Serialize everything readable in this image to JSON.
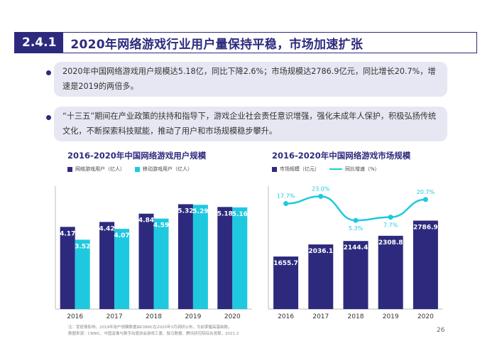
{
  "header": {
    "number": "2.4.1",
    "title": "2020年网络游戏行业用户量保持平稳，市场加速扩张"
  },
  "bullets": [
    "2020年中国网络游戏用户规模达5.18亿，同比下降2.6%；市场规模达2786.9亿元，同比增长20.7%，增速是2019的两倍多。",
    "“十三五”期间在产业政策的扶持和指导下，游戏企业社会责任意识增强，强化未成年人保护，积极弘扬传统文化，不断探索科技赋能，推动了用户和市场规模稳步攀升。"
  ],
  "colors": {
    "navy": "#2d2a7e",
    "cyan": "#1ec9e0",
    "bg": "#e6e7f2"
  },
  "chart_data": [
    {
      "type": "bar",
      "title": "2016-2020年中国网络游戏用户规模",
      "categories": [
        "2016",
        "2017",
        "2018",
        "2019",
        "2020"
      ],
      "series": [
        {
          "name": "网络游戏用户（亿人）",
          "values": [
            4.17,
            4.42,
            4.84,
            5.32,
            5.18
          ],
          "labels": [
            "4.17",
            "4.42",
            "4.84",
            "5.32",
            "5.18"
          ]
        },
        {
          "name": "移动游戏用户（亿人）",
          "values": [
            3.52,
            4.07,
            4.59,
            5.29,
            5.16
          ],
          "labels": [
            "3.52",
            "4.07",
            "4.59",
            "5.29",
            "5.16"
          ]
        }
      ],
      "ylim": [
        0,
        6.2
      ],
      "grid": false,
      "legend": "top-left"
    },
    {
      "type": "bar",
      "title": "2016-2020年中国网络游戏市场规模",
      "categories": [
        "2016",
        "2017",
        "2018",
        "2019",
        "2020"
      ],
      "series": [
        {
          "name": "市场规模（亿元）",
          "values": [
            1655.7,
            2036.1,
            2144.4,
            2308.8,
            2786.9
          ],
          "labels": [
            "1655.7",
            "2036.1",
            "2144.4",
            "2308.8",
            "2786.9"
          ]
        },
        {
          "name": "同比增速（%）",
          "values": [
            17.7,
            23.0,
            5.3,
            7.7,
            20.7
          ],
          "labels": [
            "17.7%",
            "23.0%",
            "5.3%",
            "7.7%",
            "20.7%"
          ]
        }
      ],
      "ylim": [
        0,
        3850
      ],
      "y2lim": [
        -60,
        30
      ],
      "grid": false,
      "legend": "top-left"
    }
  ],
  "footnote": [
    "注：受疫情影响，2019年用户规模数据由CNNIC在2020年3月调研公布，为前掌握高基础数。",
    "数据来源：CNNIC、中国音像与数字出版协会游戏工委、伽马数据、腾讯研究院综合测算，2021.2"
  ],
  "page_number": "26"
}
